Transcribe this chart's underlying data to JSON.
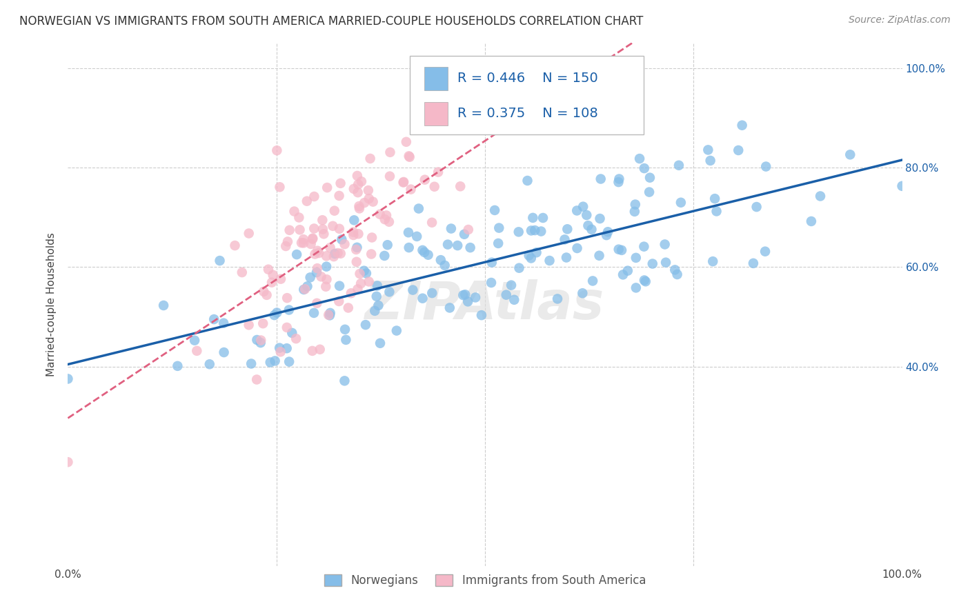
{
  "title": "NORWEGIAN VS IMMIGRANTS FROM SOUTH AMERICA MARRIED-COUPLE HOUSEHOLDS CORRELATION CHART",
  "source": "Source: ZipAtlas.com",
  "ylabel": "Married-couple Households",
  "blue_color": "#85bde8",
  "blue_line_color": "#1a5fa8",
  "pink_color": "#f5b8c8",
  "pink_line_color": "#e06080",
  "blue_R": 0.446,
  "blue_N": 150,
  "pink_R": 0.375,
  "pink_N": 108,
  "legend_label_blue": "Norwegians",
  "legend_label_pink": "Immigrants from South America",
  "watermark": "ZIPAtlas",
  "title_fontsize": 12,
  "axis_label_fontsize": 11,
  "tick_fontsize": 11,
  "source_fontsize": 10
}
